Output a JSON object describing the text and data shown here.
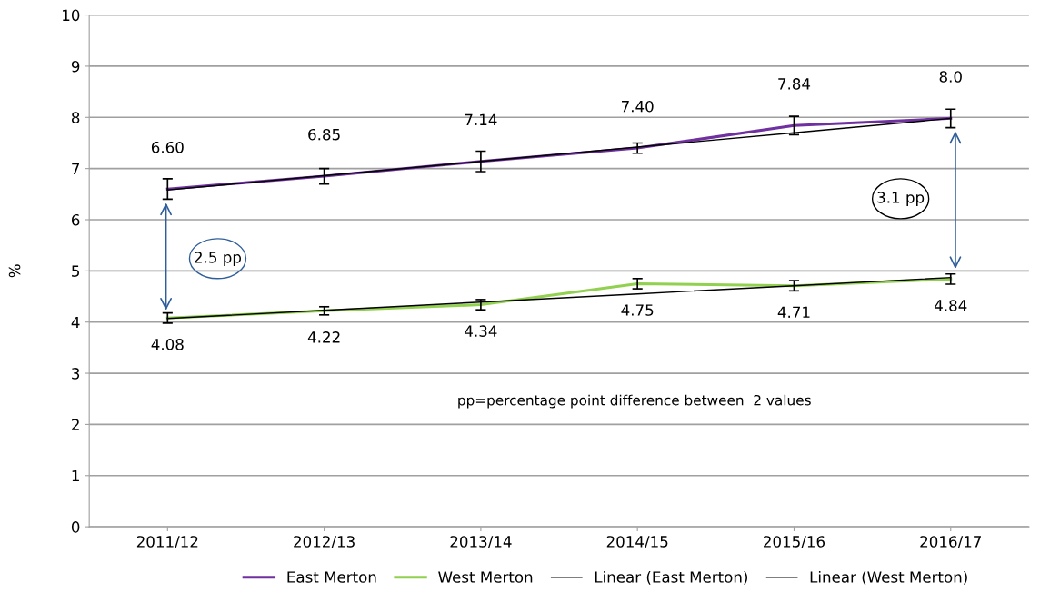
{
  "chart_data": {
    "type": "line",
    "ylabel": "%",
    "categories": [
      "2011/12",
      "2012/13",
      "2013/14",
      "2014/15",
      "2015/16",
      "2016/17"
    ],
    "series": [
      {
        "name": "East Merton",
        "color": "#7030a0",
        "values": [
          6.6,
          6.85,
          7.14,
          7.4,
          7.84,
          7.98
        ],
        "errors": [
          0.2,
          0.15,
          0.2,
          0.1,
          0.18,
          0.18
        ],
        "value_labels": [
          "6.60",
          "6.85",
          "7.14",
          "7.40",
          "7.84",
          "8.0"
        ]
      },
      {
        "name": "West Merton",
        "color": "#92d050",
        "values": [
          4.08,
          4.22,
          4.34,
          4.75,
          4.71,
          4.84
        ],
        "errors": [
          0.1,
          0.08,
          0.1,
          0.1,
          0.1,
          0.1
        ],
        "value_labels": [
          "4.08",
          "4.22",
          "4.34",
          "4.75",
          "4.71",
          "4.84"
        ]
      },
      {
        "name": "Linear (East Merton)",
        "color": "#000000",
        "values": [
          6.58,
          6.86,
          7.14,
          7.42,
          7.7,
          7.98
        ]
      },
      {
        "name": "Linear (West Merton)",
        "color": "#000000",
        "values": [
          4.07,
          4.23,
          4.39,
          4.55,
          4.71,
          4.87
        ]
      }
    ],
    "ylim": [
      0,
      10
    ],
    "yticks": [
      0,
      1,
      2,
      3,
      4,
      5,
      6,
      7,
      8,
      9,
      10
    ],
    "grid": "y",
    "legend": "bottom",
    "marker": "none",
    "line_style": "solid",
    "annotations": [
      "2.5 pp",
      "3.1 pp",
      "pp=percentage point difference between  2 values"
    ]
  }
}
